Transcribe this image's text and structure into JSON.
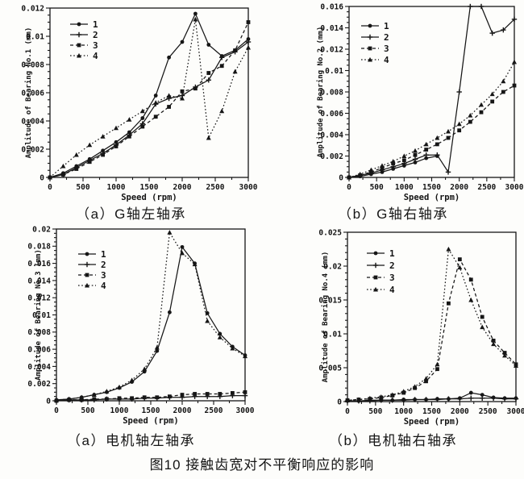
{
  "page": {
    "figure_caption": "图10 接触齿宽对不平衡响应的影响"
  },
  "chart_data": [
    {
      "type": "line",
      "caption": "（a）G轴左轴承",
      "ylabel": "Amplitude of Bearing No.1 (mm)",
      "xlabel": "Speed (rpm)",
      "xlim": [
        0,
        3000
      ],
      "ylim": [
        0,
        0.012
      ],
      "xtick_step": 500,
      "ytick_step": 0.002,
      "grid": false,
      "legend_position": "upper-left",
      "x": [
        0,
        200,
        400,
        600,
        800,
        1000,
        1200,
        1400,
        1600,
        1800,
        2000,
        2200,
        2400,
        2600,
        2800,
        3000
      ],
      "series": [
        {
          "name": "1",
          "line": "solid",
          "marker": "circle",
          "values": [
            0,
            0.0003,
            0.0008,
            0.0013,
            0.0019,
            0.0025,
            0.0032,
            0.0042,
            0.0058,
            0.0085,
            0.0096,
            0.0116,
            0.0094,
            0.0086,
            0.009,
            0.0098
          ]
        },
        {
          "name": "2",
          "line": "solid",
          "marker": "plus",
          "values": [
            0,
            0.0002,
            0.0007,
            0.0012,
            0.0017,
            0.0023,
            0.003,
            0.0038,
            0.0052,
            0.0056,
            0.0058,
            0.0064,
            0.0069,
            0.0085,
            0.0089,
            0.0096
          ]
        },
        {
          "name": "3",
          "line": "dashed",
          "marker": "square",
          "values": [
            0,
            0.0002,
            0.0006,
            0.0011,
            0.0016,
            0.0022,
            0.0029,
            0.0036,
            0.0043,
            0.005,
            0.0061,
            0.0063,
            0.0074,
            0.0079,
            0.009,
            0.011
          ]
        },
        {
          "name": "4",
          "line": "dotted",
          "marker": "triangle",
          "values": [
            0,
            0.0008,
            0.0016,
            0.0023,
            0.0029,
            0.0035,
            0.0041,
            0.0047,
            0.0053,
            0.0058,
            0.0056,
            0.0112,
            0.0028,
            0.0047,
            0.0075,
            0.0092
          ]
        }
      ]
    },
    {
      "type": "line",
      "caption": "（b）G轴右轴承",
      "ylabel": "Amplitude of Bearing No.2 (mm)",
      "xlabel": "Speed (rpm)",
      "xlim": [
        0,
        3000
      ],
      "ylim": [
        0,
        0.016
      ],
      "xtick_step": 500,
      "ytick_step": 0.002,
      "grid": false,
      "legend_position": "upper-left",
      "x": [
        0,
        200,
        400,
        600,
        800,
        1000,
        1200,
        1400,
        1600,
        1800,
        2000,
        2200,
        2400,
        2600,
        2800,
        3000
      ],
      "series": [
        {
          "name": "1",
          "line": "solid",
          "marker": "circle",
          "values": [
            0,
            0.0001,
            0.0003,
            0.0005,
            0.0008,
            0.0011,
            0.0014,
            0.0018,
            0.002,
            null,
            null,
            null,
            null,
            null,
            null,
            null
          ]
        },
        {
          "name": "2",
          "line": "solid",
          "marker": "plus",
          "values": [
            0,
            0.0002,
            0.0004,
            0.0007,
            0.001,
            0.0013,
            0.0017,
            0.0021,
            0.0021,
            0.0005,
            0.008,
            0.0165,
            0.0162,
            0.0135,
            0.0138,
            0.0148
          ]
        },
        {
          "name": "3",
          "line": "dashed",
          "marker": "square",
          "values": [
            0,
            0.0002,
            0.0005,
            0.0009,
            0.0013,
            0.0016,
            0.0021,
            0.0026,
            0.0031,
            0.0037,
            0.0044,
            0.0052,
            0.0061,
            0.0071,
            0.008,
            0.0086
          ]
        },
        {
          "name": "4",
          "line": "dotted",
          "marker": "triangle",
          "values": [
            0,
            0.0003,
            0.0007,
            0.0011,
            0.0015,
            0.002,
            0.0025,
            0.0031,
            0.0037,
            0.0043,
            0.005,
            0.0058,
            0.0068,
            0.0078,
            0.009,
            0.0108
          ]
        }
      ]
    },
    {
      "type": "line",
      "caption": "（a）电机轴左轴承",
      "ylabel": "Amplitude of Bearing No.3 (mm)",
      "xlabel": "Speed (rpm)",
      "xlim": [
        0,
        3000
      ],
      "ylim": [
        0,
        0.02
      ],
      "xtick_step": 500,
      "ytick_step": 0.002,
      "grid": false,
      "legend_position": "upper-left",
      "x": [
        0,
        200,
        400,
        600,
        800,
        1000,
        1200,
        1400,
        1600,
        1800,
        2000,
        2200,
        2400,
        2600,
        2800,
        3000
      ],
      "series": [
        {
          "name": "1",
          "line": "solid",
          "marker": "circle",
          "values": [
            0.0001,
            0.0002,
            0.0004,
            0.0007,
            0.001,
            0.0015,
            0.0022,
            0.0034,
            0.0058,
            0.0103,
            0.0179,
            0.016,
            0.0102,
            0.0078,
            0.0063,
            0.0053
          ]
        },
        {
          "name": "2",
          "line": "solid",
          "marker": "plus",
          "values": [
            0,
            0.0001,
            0.0001,
            0.0001,
            0.0002,
            0.0002,
            0.0002,
            0.0003,
            0.0003,
            0.0004,
            0.0004,
            0.0005,
            0.0005,
            0.0005,
            0.0006,
            0.0006
          ]
        },
        {
          "name": "3",
          "line": "dashed",
          "marker": "square",
          "values": [
            0,
            0.0001,
            0.0001,
            0.0002,
            0.0002,
            0.0003,
            0.0003,
            0.0004,
            0.0004,
            0.0005,
            0.0007,
            0.0008,
            0.0008,
            0.0008,
            0.0009,
            0.001
          ]
        },
        {
          "name": "4",
          "line": "dotted",
          "marker": "triangle",
          "values": [
            0.0001,
            0.0002,
            0.0004,
            0.0007,
            0.0011,
            0.0016,
            0.0024,
            0.0037,
            0.0062,
            0.0196,
            0.0172,
            0.0159,
            0.0093,
            0.0074,
            0.0061,
            0.0052
          ]
        }
      ]
    },
    {
      "type": "line",
      "caption": "（b）电机轴右轴承",
      "ylabel": "Amplitude of Bearing No.4 (mm)",
      "xlabel": "Speed (rpm)",
      "xlim": [
        0,
        3000
      ],
      "ylim": [
        0,
        0.025
      ],
      "xtick_step": 500,
      "ytick_step": 0.005,
      "grid": false,
      "legend_position": "upper-left",
      "x": [
        0,
        200,
        400,
        600,
        800,
        1000,
        1200,
        1400,
        1600,
        1800,
        2000,
        2200,
        2400,
        2600,
        2800,
        3000
      ],
      "series": [
        {
          "name": "1",
          "line": "solid",
          "marker": "circle",
          "values": [
            0.0001,
            0.0001,
            0.0002,
            0.0002,
            0.0002,
            0.0003,
            0.0003,
            0.0003,
            0.0004,
            0.0004,
            0.0005,
            0.0013,
            0.001,
            0.0006,
            0.0005,
            0.0005
          ]
        },
        {
          "name": "2",
          "line": "solid",
          "marker": "plus",
          "values": [
            0.0001,
            0.0001,
            0.0001,
            0.0002,
            0.0002,
            0.0002,
            0.0003,
            0.0003,
            0.0003,
            0.0004,
            0.0004,
            0.0005,
            0.0005,
            0.0005,
            0.0004,
            0.0004
          ]
        },
        {
          "name": "3",
          "line": "dashed",
          "marker": "square",
          "values": [
            0.0002,
            0.0003,
            0.0004,
            0.0006,
            0.0009,
            0.0013,
            0.002,
            0.003,
            0.0048,
            0.0145,
            0.021,
            0.018,
            0.0125,
            0.009,
            0.0072,
            0.0055
          ]
        },
        {
          "name": "4",
          "line": "dotted",
          "marker": "triangle",
          "values": [
            0.0002,
            0.0003,
            0.0005,
            0.0007,
            0.001,
            0.0015,
            0.0022,
            0.0034,
            0.0055,
            0.0225,
            0.0198,
            0.015,
            0.011,
            0.0085,
            0.0068,
            0.0053
          ]
        }
      ]
    }
  ]
}
